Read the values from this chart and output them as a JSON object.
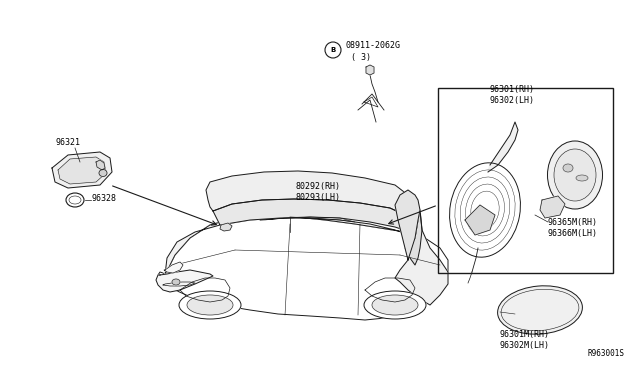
{
  "background_color": "#ffffff",
  "fig_width": 6.4,
  "fig_height": 3.72,
  "dpi": 100,
  "labels": {
    "part_B": "08911-2062G\n( 3)",
    "part_96301": "96301(RH)\n96302(LH)",
    "part_96321": "96321",
    "part_96328": "96328",
    "part_80292": "80292(RH)\n80293(LH)",
    "part_96365": "96365M(RH)\n96366M(LH)",
    "part_96301M": "96301M(RH)\n96302M(LH)",
    "ref_code": "R963001S"
  },
  "font_size": 6.0,
  "line_color": "#1a1a1a"
}
